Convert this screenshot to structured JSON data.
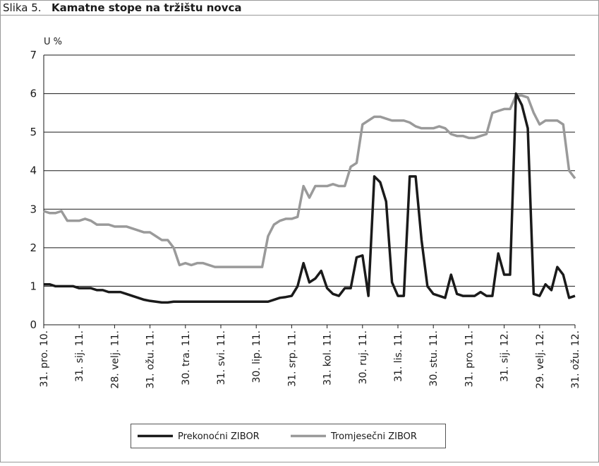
{
  "chart_data": {
    "type": "line",
    "figure_label": "Slika 5.",
    "title": "Kamatne stope na tržištu novca",
    "y_label": "U %",
    "categories": [
      "31. pro. 10.",
      null,
      null,
      null,
      null,
      null,
      "31. sij. 11.",
      null,
      null,
      null,
      null,
      null,
      "28. velj. 11.",
      null,
      null,
      null,
      null,
      null,
      "31. ožu. 11.",
      null,
      null,
      null,
      null,
      null,
      "30. tra. 11.",
      null,
      null,
      null,
      null,
      null,
      "31. svi. 11.",
      null,
      null,
      null,
      null,
      null,
      "30. lip. 11.",
      null,
      null,
      null,
      null,
      null,
      "31. srp. 11.",
      null,
      null,
      null,
      null,
      null,
      "31. kol. 11.",
      null,
      null,
      null,
      null,
      null,
      "30. ruj. 11.",
      null,
      null,
      null,
      null,
      null,
      "31. lis. 11.",
      null,
      null,
      null,
      null,
      null,
      "30. stu. 11.",
      null,
      null,
      null,
      null,
      null,
      "31. pro. 11.",
      null,
      null,
      null,
      null,
      null,
      "31. sij. 12.",
      null,
      null,
      null,
      null,
      null,
      "29. velj. 12.",
      null,
      null,
      null,
      null,
      null,
      "31. ožu. 12."
    ],
    "series": [
      {
        "name": "Prekonoćni ZIBOR",
        "color": "#1a1a1a",
        "values": [
          1.05,
          1.05,
          1.0,
          1.0,
          1.0,
          1.0,
          0.95,
          0.95,
          0.95,
          0.9,
          0.9,
          0.85,
          0.85,
          0.85,
          0.8,
          0.75,
          0.7,
          0.65,
          0.62,
          0.6,
          0.58,
          0.58,
          0.6,
          0.6,
          0.6,
          0.6,
          0.6,
          0.6,
          0.6,
          0.6,
          0.6,
          0.6,
          0.6,
          0.6,
          0.6,
          0.6,
          0.6,
          0.6,
          0.6,
          0.65,
          0.7,
          0.72,
          0.75,
          1.0,
          1.6,
          1.1,
          1.2,
          1.4,
          0.95,
          0.8,
          0.75,
          0.95,
          0.95,
          1.75,
          1.8,
          0.75,
          3.85,
          3.7,
          3.2,
          1.1,
          0.75,
          0.75,
          3.85,
          3.85,
          2.2,
          1.0,
          0.8,
          0.75,
          0.7,
          1.3,
          0.8,
          0.75,
          0.75,
          0.75,
          0.85,
          0.75,
          0.75,
          1.85,
          1.3,
          1.3,
          6.0,
          5.7,
          5.1,
          0.8,
          0.75,
          1.05,
          0.9,
          1.5,
          1.3,
          0.7,
          0.75
        ]
      },
      {
        "name": "Tromjesečni ZIBOR",
        "color": "#9a9a9a",
        "values": [
          2.95,
          2.9,
          2.9,
          2.95,
          2.7,
          2.7,
          2.7,
          2.75,
          2.7,
          2.6,
          2.6,
          2.6,
          2.55,
          2.55,
          2.55,
          2.5,
          2.45,
          2.4,
          2.4,
          2.3,
          2.2,
          2.2,
          2.0,
          1.55,
          1.6,
          1.55,
          1.6,
          1.6,
          1.55,
          1.5,
          1.5,
          1.5,
          1.5,
          1.5,
          1.5,
          1.5,
          1.5,
          1.5,
          2.3,
          2.6,
          2.7,
          2.75,
          2.75,
          2.8,
          3.6,
          3.3,
          3.6,
          3.6,
          3.6,
          3.65,
          3.6,
          3.6,
          4.1,
          4.2,
          5.2,
          5.3,
          5.4,
          5.4,
          5.35,
          5.3,
          5.3,
          5.3,
          5.25,
          5.15,
          5.1,
          5.1,
          5.1,
          5.15,
          5.1,
          4.95,
          4.9,
          4.9,
          4.85,
          4.85,
          4.9,
          4.95,
          5.5,
          5.55,
          5.6,
          5.6,
          5.95,
          5.95,
          5.9,
          5.5,
          5.2,
          5.3,
          5.3,
          5.3,
          5.2,
          4.0,
          3.8
        ]
      }
    ],
    "ylim": [
      0,
      7
    ],
    "yticks": [
      0,
      1,
      2,
      3,
      4,
      5,
      6,
      7
    ],
    "grid": true
  }
}
